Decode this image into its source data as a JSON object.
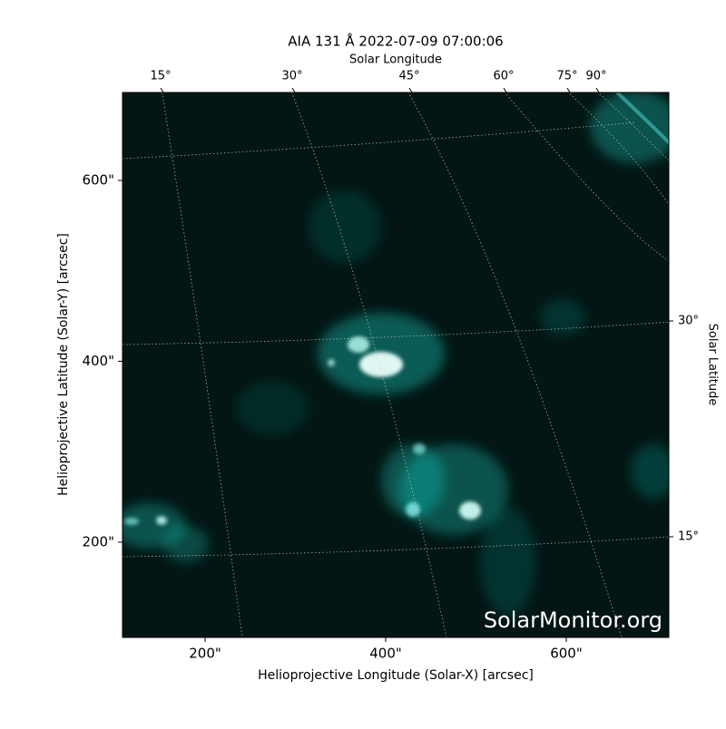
{
  "chart_data": {
    "type": "image",
    "title": "AIA 131 Å 2022-07-09 07:00:06",
    "xlabel": "Helioprojective Longitude (Solar-X) [arcsec]",
    "ylabel": "Helioprojective Latitude (Solar-Y) [arcsec]",
    "xlim": [
      108.5,
      713.6
    ],
    "ylim": [
      94.7,
      697.2
    ],
    "xticks": [
      {
        "value": 200,
        "label": "200\""
      },
      {
        "value": 400,
        "label": "400\""
      },
      {
        "value": 600,
        "label": "600\""
      }
    ],
    "yticks": [
      {
        "value": 200,
        "label": "200\""
      },
      {
        "value": 400,
        "label": "400\""
      },
      {
        "value": 600,
        "label": "600\""
      }
    ],
    "x2label": "Solar Longitude",
    "x2ticks": [
      {
        "value": 15,
        "label": "15°"
      },
      {
        "value": 30,
        "label": "30°"
      },
      {
        "value": 45,
        "label": "45°"
      },
      {
        "value": 60,
        "label": "60°"
      },
      {
        "value": 75,
        "label": "75°"
      },
      {
        "value": 90,
        "label": "90°"
      }
    ],
    "y2label": "Solar Latitude",
    "y2ticks": [
      {
        "value": 15,
        "label": "15°"
      },
      {
        "value": 30,
        "label": "30°"
      }
    ],
    "watermark": "SolarMonitor.org",
    "color": "#19e0d0"
  }
}
